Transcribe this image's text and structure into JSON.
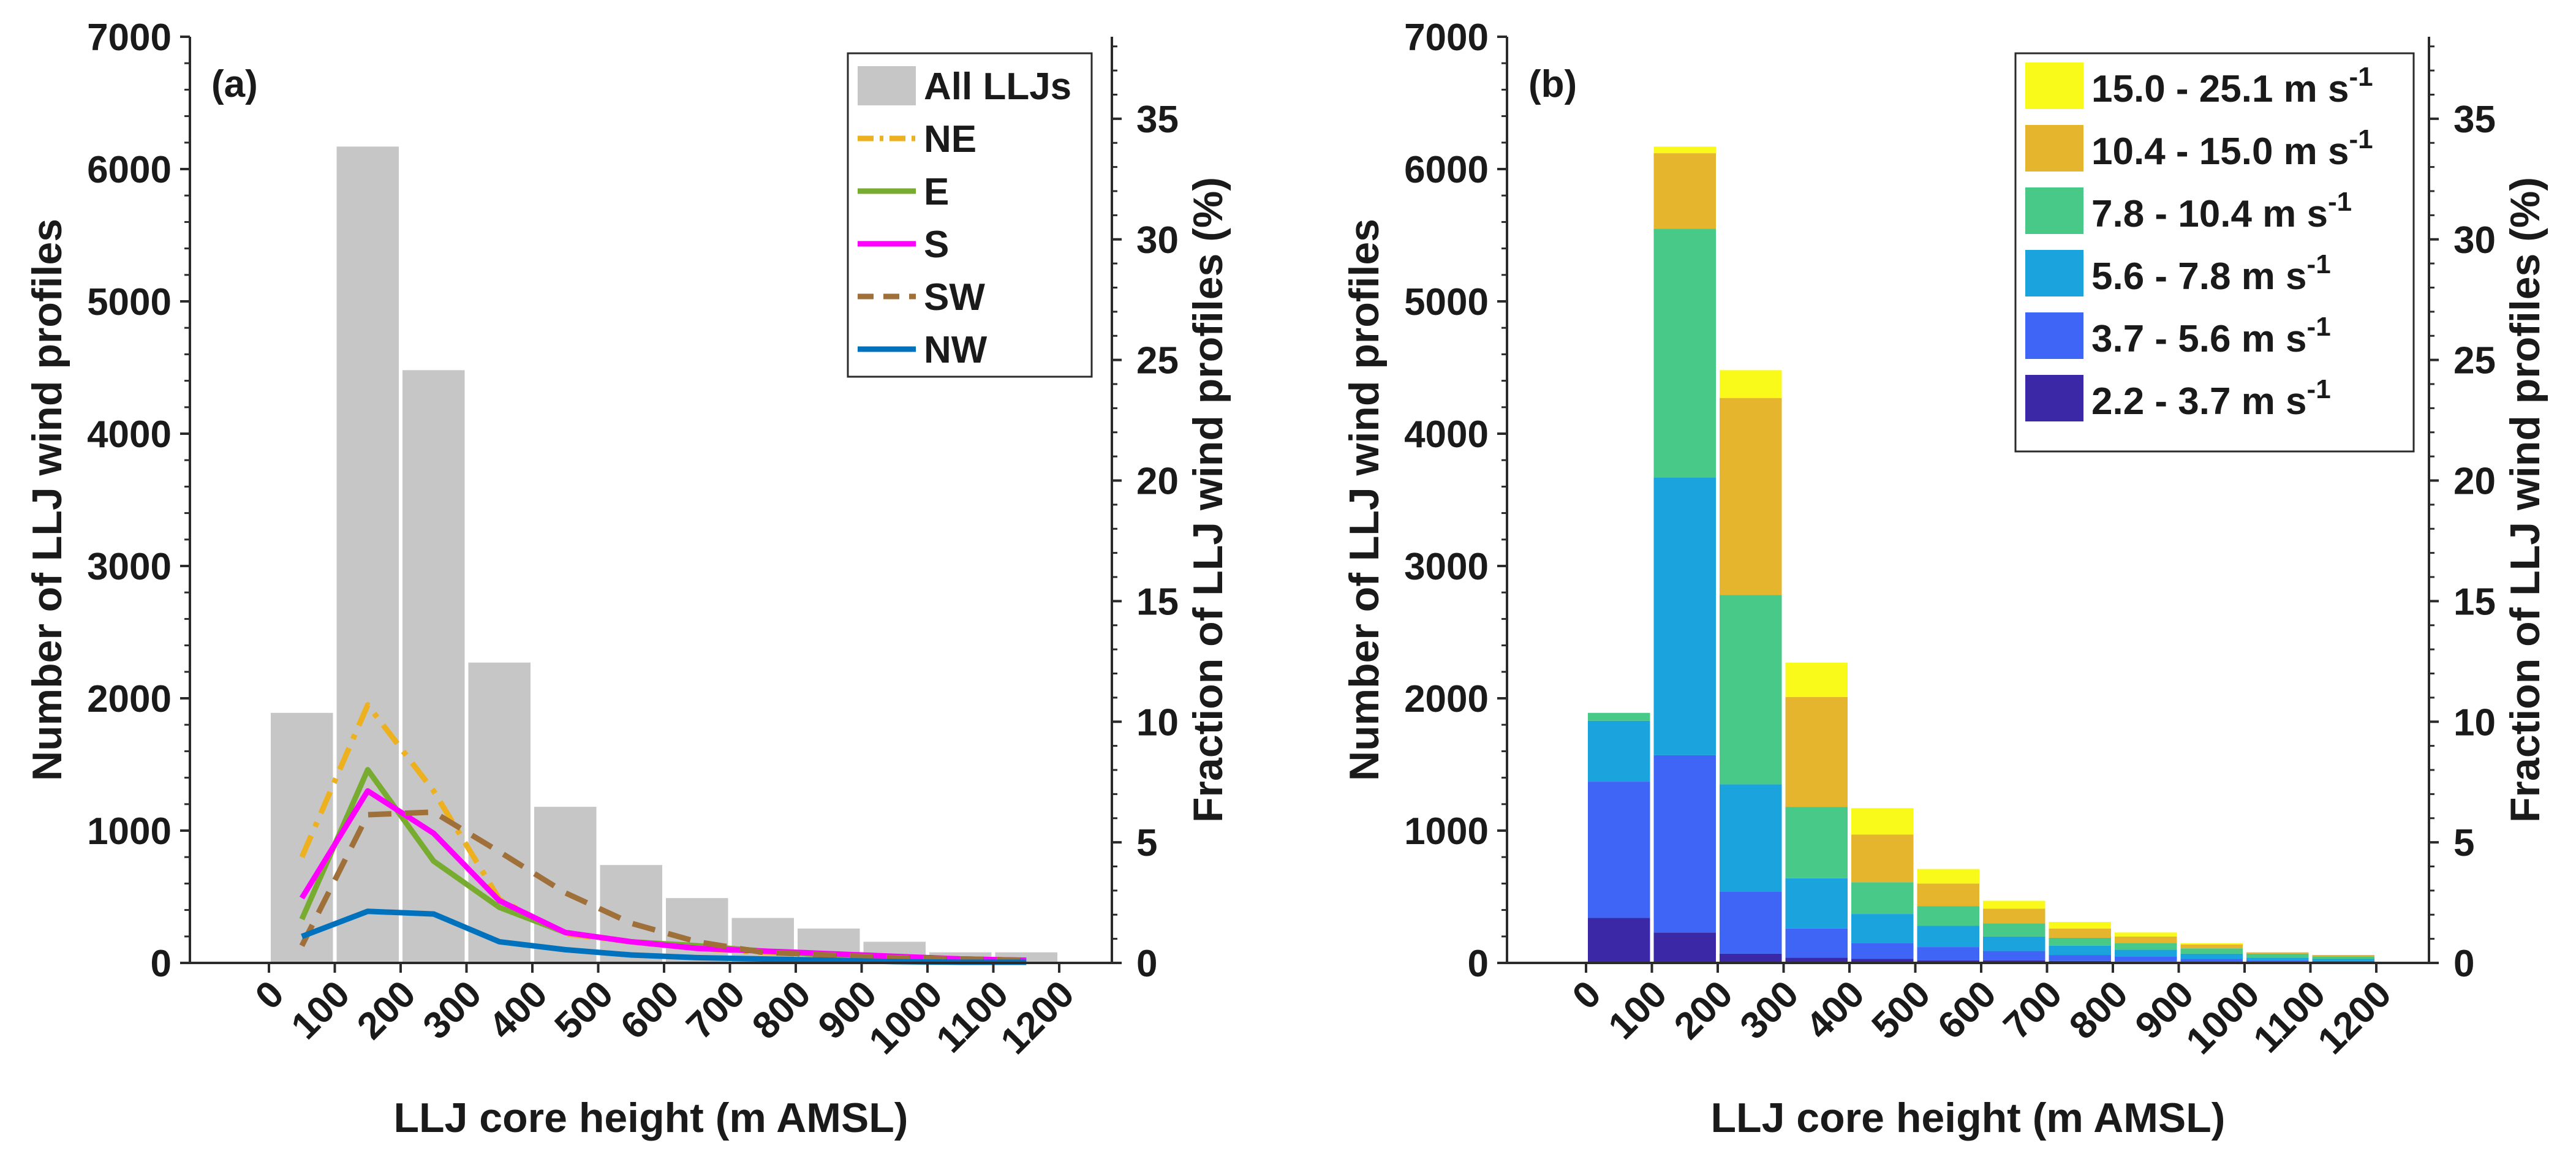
{
  "chart_data": [
    {
      "panel_label": "(a)",
      "type": "bar",
      "xlabel": "LLJ core height (m AMSL)",
      "ylabel_left": "Number of LLJ wind profiles",
      "ylabel_right": "Fraction of LLJ wind profiles (%)",
      "xlim": [
        -120,
        1280
      ],
      "ylim_left": [
        0,
        7000
      ],
      "ylim_right": [
        0,
        38.4
      ],
      "x_ticks": [
        "0",
        "100",
        "200",
        "300",
        "400",
        "500",
        "600",
        "700",
        "800",
        "900",
        "1000",
        "1100",
        "1200"
      ],
      "y_ticks_left": [
        "0",
        "1000",
        "2000",
        "3000",
        "4000",
        "5000",
        "6000",
        "7000"
      ],
      "y_ticks_right": [
        "0",
        "5",
        "10",
        "15",
        "20",
        "25",
        "30",
        "35"
      ],
      "bar_series": {
        "name": "All LLJs",
        "color": "#c6c6c6",
        "bins": [
          [
            0,
            100
          ],
          [
            100,
            200
          ],
          [
            200,
            300
          ],
          [
            300,
            400
          ],
          [
            400,
            500
          ],
          [
            500,
            600
          ],
          [
            600,
            700
          ],
          [
            700,
            800
          ],
          [
            800,
            900
          ],
          [
            900,
            1000
          ],
          [
            1000,
            1100
          ],
          [
            1100,
            1200
          ]
        ],
        "values": [
          1890,
          6170,
          4480,
          2270,
          1180,
          740,
          490,
          340,
          260,
          160,
          80,
          80
        ]
      },
      "line_series": [
        {
          "name": "NE",
          "color": "#edb120",
          "dash": "dashdot",
          "x": [
            50,
            150,
            250,
            350,
            450,
            550,
            650,
            750,
            850,
            950,
            1050,
            1150
          ],
          "values": [
            800,
            1950,
            1300,
            480,
            220,
            160,
            110,
            80,
            60,
            40,
            30,
            20
          ]
        },
        {
          "name": "E",
          "color": "#77ac30",
          "dash": "solid",
          "x": [
            50,
            150,
            250,
            350,
            450,
            550,
            650,
            750,
            850,
            950,
            1050,
            1150
          ],
          "values": [
            330,
            1460,
            770,
            420,
            230,
            160,
            130,
            90,
            60,
            40,
            30,
            20
          ]
        },
        {
          "name": "S",
          "color": "#ff00ff",
          "dash": "solid",
          "x": [
            50,
            150,
            250,
            350,
            450,
            550,
            650,
            750,
            850,
            950,
            1050,
            1150
          ],
          "values": [
            490,
            1300,
            980,
            470,
            230,
            160,
            110,
            90,
            70,
            50,
            30,
            20
          ]
        },
        {
          "name": "SW",
          "color": "#a0703a",
          "dash": "dashed",
          "x": [
            50,
            150,
            250,
            350,
            450,
            550,
            650,
            750,
            850,
            950,
            1050,
            1150
          ],
          "values": [
            130,
            1120,
            1140,
            840,
            530,
            300,
            160,
            80,
            60,
            40,
            30,
            20
          ]
        },
        {
          "name": "NW",
          "color": "#0072bd",
          "dash": "solid",
          "x": [
            50,
            150,
            250,
            350,
            450,
            550,
            650,
            750,
            850,
            950,
            1050,
            1150
          ],
          "values": [
            200,
            390,
            370,
            160,
            100,
            60,
            40,
            30,
            20,
            10,
            5,
            5
          ]
        }
      ],
      "legend": [
        "All LLJs",
        "NE",
        "E",
        "S",
        "SW",
        "NW"
      ],
      "legend_position": "top-right"
    },
    {
      "panel_label": "(b)",
      "type": "bar",
      "stacked": true,
      "xlabel": "LLJ core height (m AMSL)",
      "ylabel_left": "Number of LLJ wind profiles",
      "ylabel_right": "Fraction of LLJ wind profiles (%)",
      "xlim": [
        -120,
        1280
      ],
      "ylim_left": [
        0,
        7000
      ],
      "ylim_right": [
        0,
        38.4
      ],
      "x_ticks": [
        "0",
        "100",
        "200",
        "300",
        "400",
        "500",
        "600",
        "700",
        "800",
        "900",
        "1000",
        "1100",
        "1200"
      ],
      "y_ticks_left": [
        "0",
        "1000",
        "2000",
        "3000",
        "4000",
        "5000",
        "6000",
        "7000"
      ],
      "y_ticks_right": [
        "0",
        "5",
        "10",
        "15",
        "20",
        "25",
        "30",
        "35"
      ],
      "bins": [
        [
          0,
          100
        ],
        [
          100,
          200
        ],
        [
          200,
          300
        ],
        [
          300,
          400
        ],
        [
          400,
          500
        ],
        [
          500,
          600
        ],
        [
          600,
          700
        ],
        [
          700,
          800
        ],
        [
          800,
          900
        ],
        [
          900,
          1000
        ],
        [
          1000,
          1100
        ],
        [
          1100,
          1200
        ]
      ],
      "series": [
        {
          "name": "2.2 - 3.7 m s",
          "superscript": "-1",
          "color": "#3b28a6",
          "values": [
            340,
            230,
            70,
            40,
            30,
            20,
            20,
            15,
            10,
            5,
            5,
            5
          ]
        },
        {
          "name": "3.7 - 5.6 m s",
          "superscript": "-1",
          "color": "#3e65f5",
          "values": [
            1030,
            1340,
            470,
            220,
            120,
            100,
            70,
            45,
            40,
            25,
            15,
            10
          ]
        },
        {
          "name": "5.6 - 7.8 m s",
          "superscript": "-1",
          "color": "#1aa3dd",
          "values": [
            460,
            2100,
            810,
            380,
            220,
            160,
            110,
            70,
            50,
            40,
            20,
            15
          ]
        },
        {
          "name": "7.8 - 10.4 m s",
          "superscript": "-1",
          "color": "#48c987",
          "values": [
            60,
            1880,
            1430,
            540,
            240,
            150,
            100,
            60,
            50,
            40,
            30,
            20
          ]
        },
        {
          "name": "10.4 - 15.0 m s",
          "superscript": "-1",
          "color": "#e6b52e",
          "values": [
            0,
            570,
            1490,
            830,
            360,
            170,
            110,
            70,
            50,
            30,
            10,
            10
          ]
        },
        {
          "name": "15.0 - 25.1 m s",
          "superscript": "-1",
          "color": "#f9fa1a",
          "values": [
            0,
            50,
            210,
            260,
            200,
            110,
            60,
            50,
            30,
            10,
            0,
            0
          ]
        }
      ],
      "legend_position": "top-right"
    }
  ]
}
